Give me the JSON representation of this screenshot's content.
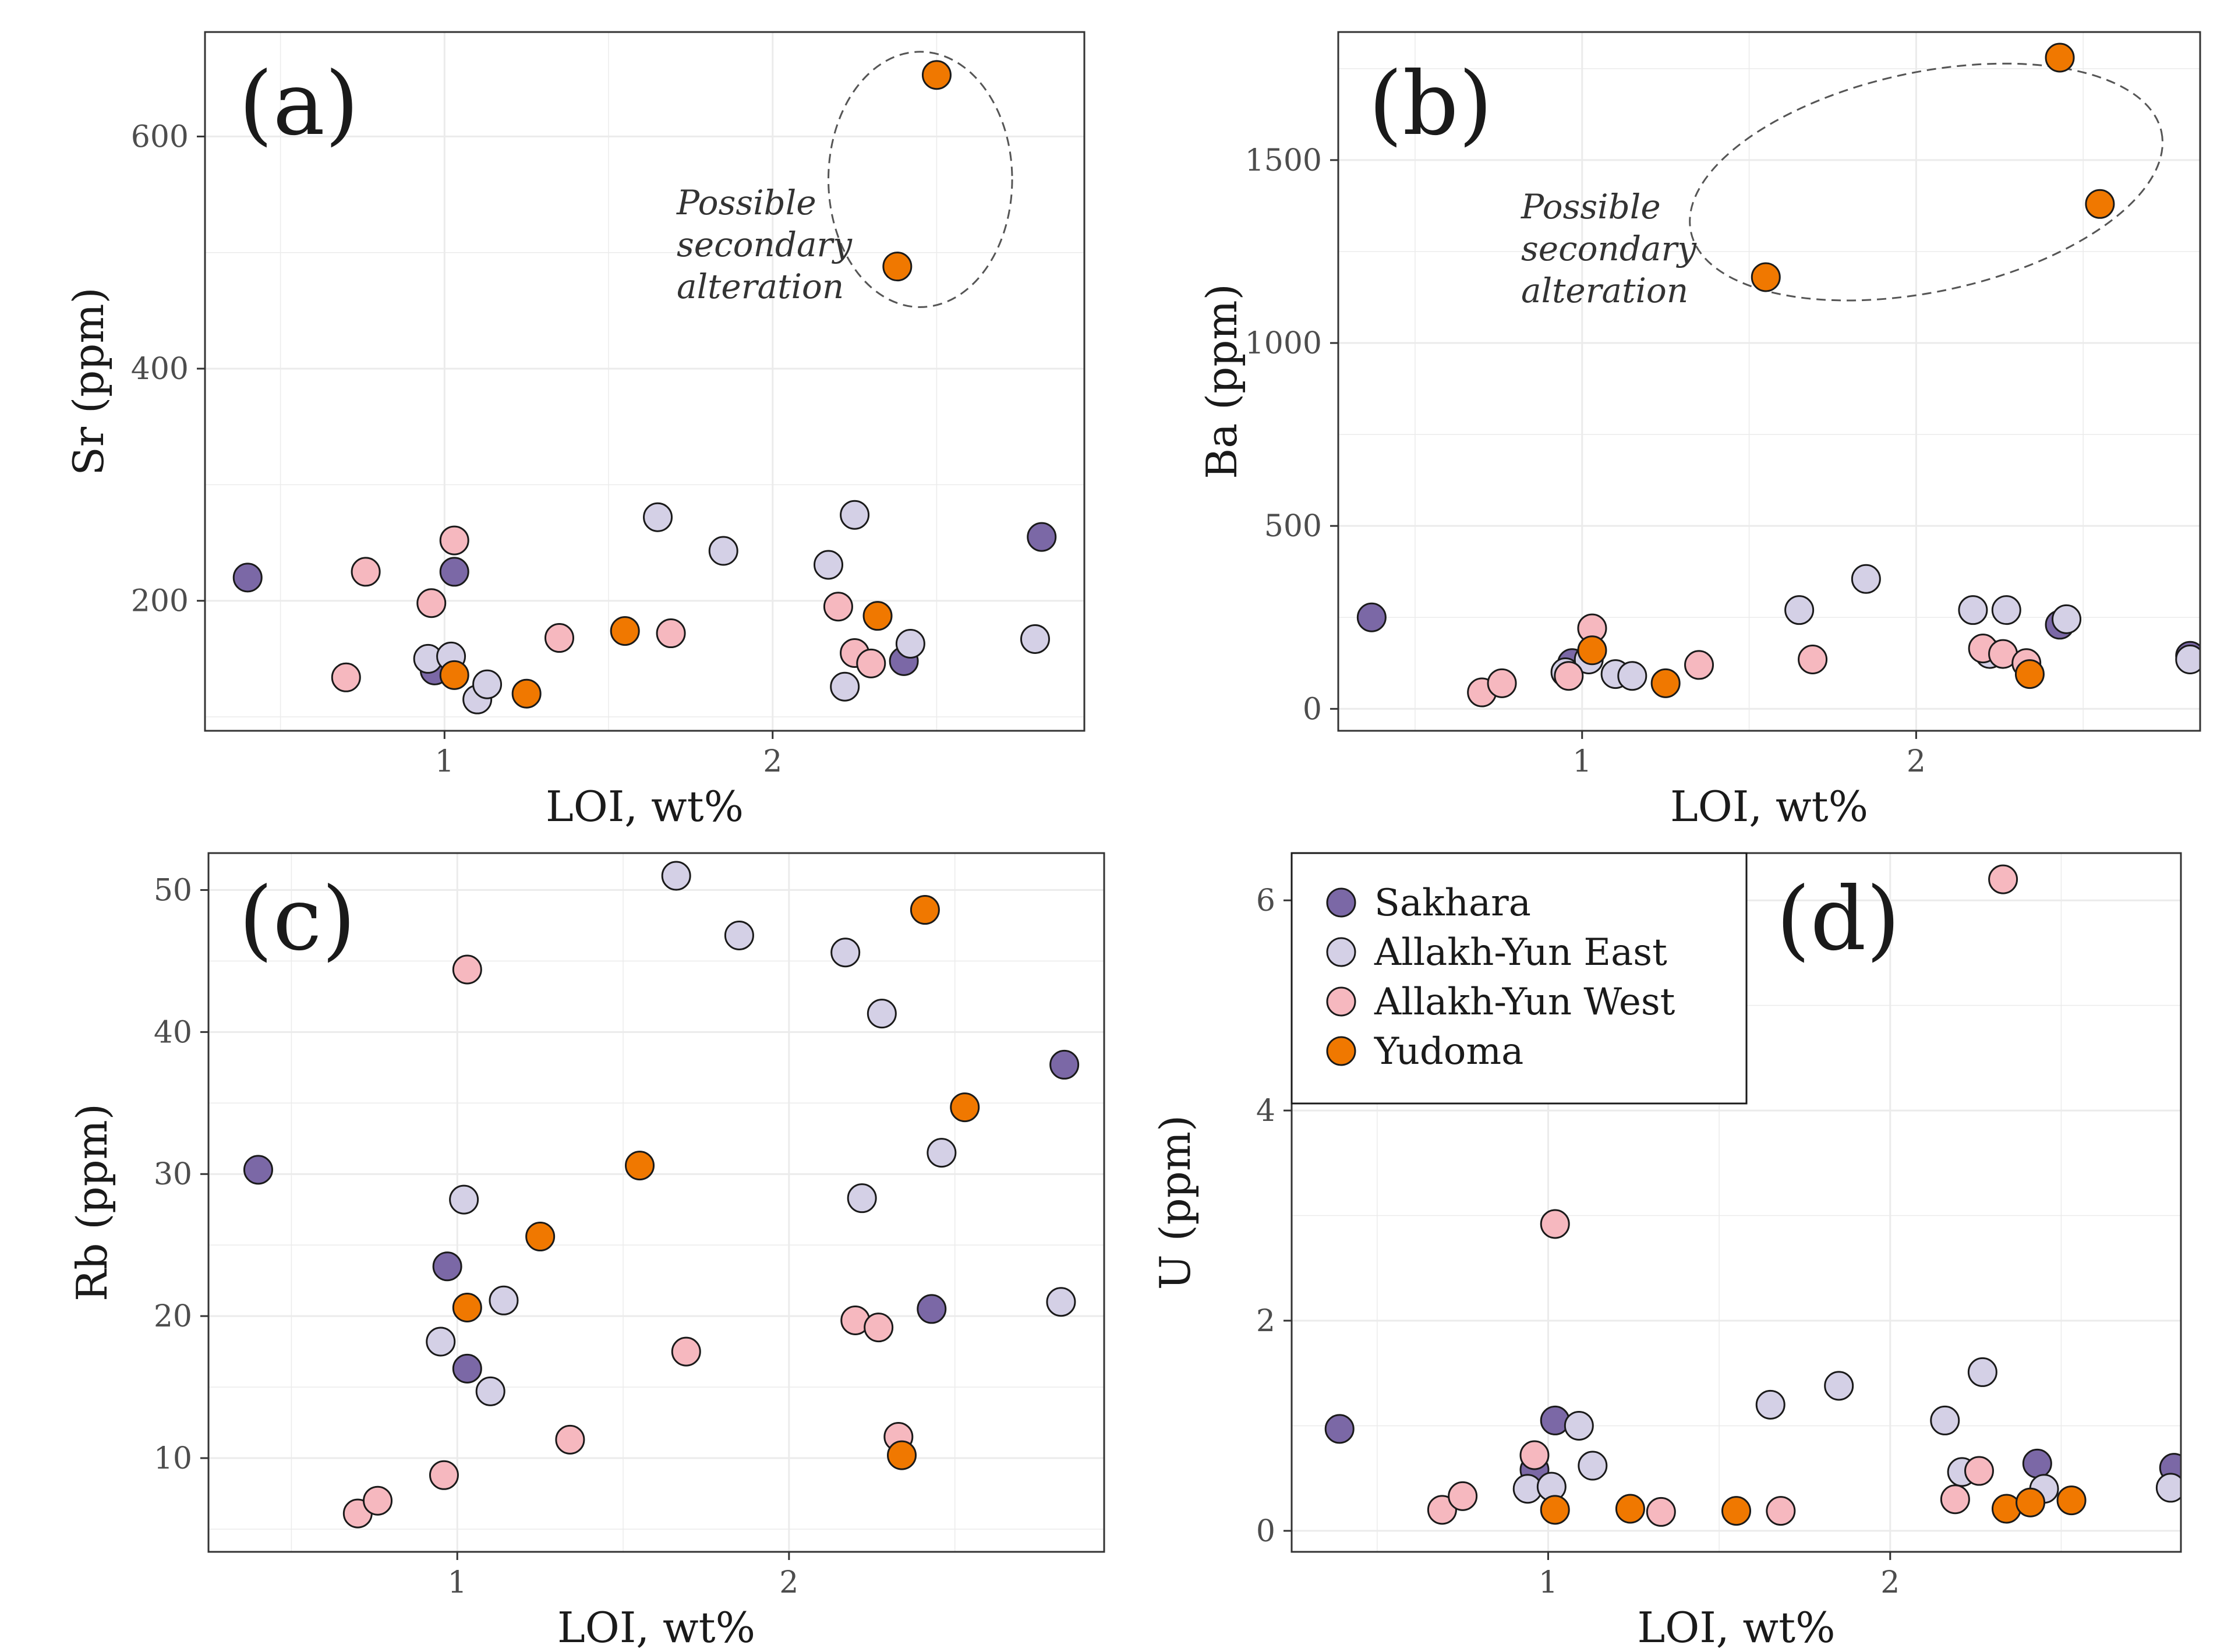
{
  "colors": {
    "Sakhara": "#7b68a6",
    "Allakh-Yun East": "#d4d0e6",
    "Allakh-Yun West": "#f6b8bf",
    "Yudoma": "#f07800",
    "grid": "#ebebeb",
    "outline": "#1a1a1a"
  },
  "legend": {
    "items": [
      "Sakhara",
      "Allakh-Yun East",
      "Allakh-Yun West",
      "Yudoma"
    ]
  },
  "chart_data": [
    {
      "id": "a",
      "type": "scatter",
      "panel_label": "(a)",
      "xlabel": "LOI, wt%",
      "ylabel": "Sr (ppm)",
      "xlim": [
        0.27,
        2.95
      ],
      "ylim": [
        88,
        690
      ],
      "xticks": [
        1,
        2
      ],
      "xtick_labels": [
        "1",
        "2"
      ],
      "yticks": [
        200,
        400,
        600
      ],
      "ytick_labels": [
        "200",
        "400",
        "600"
      ],
      "annotation": {
        "lines": [
          "Possible",
          "secondary",
          "alteration"
        ],
        "ellipse_center": [
          2.45,
          563
        ],
        "ellipse_radii": [
          0.28,
          110
        ]
      },
      "series": [
        {
          "name": "Sakhara",
          "points": [
            [
              0.4,
              220
            ],
            [
              0.97,
              140
            ],
            [
              1.03,
              225
            ],
            [
              2.4,
              148
            ],
            [
              2.82,
              255
            ]
          ]
        },
        {
          "name": "Allakh-Yun East",
          "points": [
            [
              0.95,
              150
            ],
            [
              1.02,
              152
            ],
            [
              1.1,
              115
            ],
            [
              1.13,
              128
            ],
            [
              1.65,
              272
            ],
            [
              1.85,
              243
            ],
            [
              2.17,
              231
            ],
            [
              2.22,
              126
            ],
            [
              2.25,
              274
            ],
            [
              2.42,
              163
            ],
            [
              2.8,
              167
            ]
          ]
        },
        {
          "name": "Allakh-Yun West",
          "points": [
            [
              0.7,
              134
            ],
            [
              0.76,
              225
            ],
            [
              0.96,
              198
            ],
            [
              1.03,
              252
            ],
            [
              1.35,
              168
            ],
            [
              1.69,
              172
            ],
            [
              2.2,
              195
            ],
            [
              2.25,
              155
            ],
            [
              2.3,
              146
            ]
          ]
        },
        {
          "name": "Yudoma",
          "points": [
            [
              1.03,
              136
            ],
            [
              1.25,
              120
            ],
            [
              1.55,
              174
            ],
            [
              2.32,
              187
            ],
            [
              2.38,
              488
            ],
            [
              2.5,
              653
            ]
          ]
        }
      ]
    },
    {
      "id": "b",
      "type": "scatter",
      "panel_label": "(b)",
      "xlabel": "LOI, wt%",
      "ylabel": "Ba (ppm)",
      "xlim": [
        0.27,
        2.85
      ],
      "ylim": [
        -60,
        1850
      ],
      "xticks": [
        1,
        2
      ],
      "xtick_labels": [
        "1",
        "2"
      ],
      "yticks": [
        0,
        500,
        1000,
        1500
      ],
      "ytick_labels": [
        "0",
        "500",
        "1000",
        "1500"
      ],
      "annotation": {
        "lines": [
          "Possible",
          "secondary",
          "alteration"
        ],
        "ellipse_center": [
          2.03,
          1440
        ],
        "ellipse_radii": [
          0.72,
          300
        ]
      },
      "series": [
        {
          "name": "Sakhara",
          "points": [
            [
              0.37,
              250
            ],
            [
              0.97,
              125
            ],
            [
              2.43,
              230
            ],
            [
              2.82,
              145
            ]
          ]
        },
        {
          "name": "Allakh-Yun East",
          "points": [
            [
              0.95,
              100
            ],
            [
              1.02,
              135
            ],
            [
              1.1,
              95
            ],
            [
              1.15,
              90
            ],
            [
              1.65,
              270
            ],
            [
              1.85,
              355
            ],
            [
              2.17,
              270
            ],
            [
              2.22,
              150
            ],
            [
              2.27,
              270
            ],
            [
              2.45,
              245
            ],
            [
              2.82,
              135
            ]
          ]
        },
        {
          "name": "Allakh-Yun West",
          "points": [
            [
              0.7,
              45
            ],
            [
              0.76,
              70
            ],
            [
              0.96,
              90
            ],
            [
              1.03,
              220
            ],
            [
              1.35,
              120
            ],
            [
              1.69,
              135
            ],
            [
              2.2,
              165
            ],
            [
              2.26,
              150
            ],
            [
              2.33,
              125
            ]
          ]
        },
        {
          "name": "Yudoma",
          "points": [
            [
              1.03,
              160
            ],
            [
              1.25,
              70
            ],
            [
              1.55,
              1180
            ],
            [
              2.34,
              95
            ],
            [
              2.43,
              1780
            ],
            [
              2.55,
              1380
            ]
          ]
        }
      ]
    },
    {
      "id": "c",
      "type": "scatter",
      "panel_label": "(c)",
      "xlabel": "LOI, wt%",
      "ylabel": "Rb (ppm)",
      "xlim": [
        0.25,
        2.95
      ],
      "ylim": [
        3.4,
        52.6
      ],
      "xticks": [
        1,
        2
      ],
      "xtick_labels": [
        "1",
        "2"
      ],
      "yticks": [
        10,
        20,
        30,
        40,
        50
      ],
      "ytick_labels": [
        "10",
        "20",
        "30",
        "40",
        "50"
      ],
      "series": [
        {
          "name": "Sakhara",
          "points": [
            [
              0.4,
              30.3
            ],
            [
              0.97,
              23.5
            ],
            [
              1.03,
              16.3
            ],
            [
              2.43,
              20.5
            ],
            [
              2.83,
              37.7
            ]
          ]
        },
        {
          "name": "Allakh-Yun East",
          "points": [
            [
              0.95,
              18.2
            ],
            [
              1.02,
              28.2
            ],
            [
              1.1,
              14.7
            ],
            [
              1.14,
              21.1
            ],
            [
              1.66,
              51.0
            ],
            [
              1.85,
              46.8
            ],
            [
              2.17,
              45.6
            ],
            [
              2.22,
              28.3
            ],
            [
              2.28,
              41.3
            ],
            [
              2.46,
              31.5
            ],
            [
              2.82,
              21.0
            ]
          ]
        },
        {
          "name": "Allakh-Yun West",
          "points": [
            [
              0.7,
              6.1
            ],
            [
              0.76,
              7.0
            ],
            [
              0.96,
              8.8
            ],
            [
              1.03,
              44.4
            ],
            [
              1.34,
              11.3
            ],
            [
              1.69,
              17.5
            ],
            [
              2.2,
              19.7
            ],
            [
              2.27,
              19.2
            ],
            [
              2.33,
              11.5
            ]
          ]
        },
        {
          "name": "Yudoma",
          "points": [
            [
              1.03,
              20.6
            ],
            [
              1.25,
              25.6
            ],
            [
              1.55,
              30.6
            ],
            [
              2.34,
              10.2
            ],
            [
              2.41,
              48.6
            ],
            [
              2.53,
              34.7
            ]
          ]
        }
      ]
    },
    {
      "id": "d",
      "type": "scatter",
      "panel_label": "(d)",
      "xlabel": "LOI, wt%",
      "ylabel": "U (ppm)",
      "xlim": [
        0.25,
        2.85
      ],
      "ylim": [
        -0.2,
        6.45
      ],
      "xticks": [
        1,
        2
      ],
      "xtick_labels": [
        "1",
        "2"
      ],
      "yticks": [
        0,
        2,
        4,
        6
      ],
      "ytick_labels": [
        "0",
        "2",
        "4",
        "6"
      ],
      "series": [
        {
          "name": "Sakhara",
          "points": [
            [
              0.39,
              0.97
            ],
            [
              0.96,
              0.58
            ],
            [
              1.02,
              1.05
            ],
            [
              2.43,
              0.64
            ],
            [
              2.83,
              0.6
            ]
          ]
        },
        {
          "name": "Allakh-Yun East",
          "points": [
            [
              0.94,
              0.4
            ],
            [
              1.01,
              0.42
            ],
            [
              1.09,
              1.0
            ],
            [
              1.13,
              0.62
            ],
            [
              1.65,
              1.2
            ],
            [
              1.85,
              1.38
            ],
            [
              2.16,
              1.05
            ],
            [
              2.21,
              0.56
            ],
            [
              2.27,
              1.51
            ],
            [
              2.45,
              0.4
            ],
            [
              2.82,
              0.41
            ]
          ]
        },
        {
          "name": "Allakh-Yun West",
          "points": [
            [
              0.69,
              0.2
            ],
            [
              0.75,
              0.33
            ],
            [
              0.96,
              0.72
            ],
            [
              1.02,
              2.92
            ],
            [
              1.33,
              0.18
            ],
            [
              1.68,
              0.19
            ],
            [
              2.19,
              0.3
            ],
            [
              2.26,
              0.57
            ],
            [
              2.33,
              6.2
            ]
          ]
        },
        {
          "name": "Yudoma",
          "points": [
            [
              1.02,
              0.2
            ],
            [
              1.24,
              0.21
            ],
            [
              1.55,
              0.19
            ],
            [
              2.34,
              0.21
            ],
            [
              2.41,
              0.27
            ],
            [
              2.53,
              0.29
            ]
          ]
        }
      ]
    }
  ]
}
